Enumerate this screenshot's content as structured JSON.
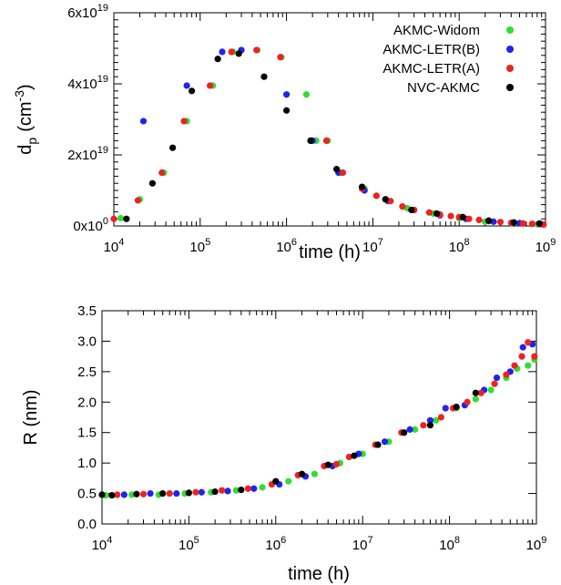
{
  "chart_data": [
    {
      "type": "scatter",
      "xscale": "log",
      "xlim": [
        10000,
        1000000000
      ],
      "ylim": [
        0,
        6e+19
      ],
      "xlabel": "time (h)",
      "ylabel_main": "d",
      "ylabel_sub": "p",
      "ylabel_unit": "(cm",
      "ylabel_unit_sup": "-3",
      "ylabel_close": ")",
      "xticks": [
        {
          "value": 10000,
          "base": "10",
          "exp": "4"
        },
        {
          "value": 100000,
          "base": "10",
          "exp": "5"
        },
        {
          "value": 1000000,
          "base": "10",
          "exp": "6"
        },
        {
          "value": 10000000,
          "base": "10",
          "exp": "7"
        },
        {
          "value": 100000000,
          "base": "10",
          "exp": "8"
        },
        {
          "value": 1000000000,
          "base": "10",
          "exp": "9"
        }
      ],
      "yticks": [
        {
          "value": 0,
          "mant": "0x10",
          "exp": "0"
        },
        {
          "value": 2e+19,
          "mant": "2x10",
          "exp": "19"
        },
        {
          "value": 4e+19,
          "mant": "4x10",
          "exp": "19"
        },
        {
          "value": 6e+19,
          "mant": "6x10",
          "exp": "19"
        }
      ],
      "legend_position": "top-right",
      "series": [
        {
          "name": "AKMC-Widom",
          "color": "#33dd33",
          "x": [
            12000,
            20000,
            38000,
            70000,
            140000,
            240000,
            460000,
            870000,
            1700000,
            2200000,
            3000000,
            4300000,
            8000000,
            14000000,
            25000000,
            50000000,
            100000000,
            200000000,
            400000000,
            800000000
          ],
          "y": [
            2.2e+18,
            7.5e+18,
            1.5e+19,
            2.95e+19,
            3.95e+19,
            4.9e+19,
            4.95e+19,
            4.75e+19,
            3.7e+19,
            2.4e+19,
            2.4e+19,
            1.5e+19,
            1.05e+19,
            7.5e+18,
            5e+18,
            3.5e+18,
            2.2e+18,
            1.2e+18,
            8e+17,
            5e+17
          ]
        },
        {
          "name": "AKMC-LETR(B)",
          "color": "#2222ee",
          "x": [
            22000,
            70000,
            180000,
            300000,
            1000000,
            2000000,
            4000000,
            8000000,
            15000000,
            30000000,
            60000000,
            120000000,
            250000000,
            500000000,
            900000000
          ],
          "y": [
            2.95e+19,
            3.95e+19,
            4.9e+19,
            4.95e+19,
            3.7e+19,
            2.4e+19,
            1.5e+19,
            1e+19,
            7e+18,
            4.5e+18,
            3e+18,
            2e+18,
            1.2e+18,
            8e+17,
            5e+17
          ]
        },
        {
          "name": "AKMC-LETR(A)",
          "color": "#ee2222",
          "x": [
            10000,
            19000,
            36000,
            65000,
            130000,
            230000,
            450000,
            850000,
            1900000,
            2900000,
            4500000,
            7500000,
            11000000,
            16000000,
            22000000,
            30000000,
            45000000,
            60000000,
            80000000,
            100000000,
            130000000,
            170000000,
            220000000,
            300000000,
            400000000,
            550000000,
            700000000,
            850000000,
            950000000
          ],
          "y": [
            2e+18,
            7.2e+18,
            1.5e+19,
            2.95e+19,
            3.95e+19,
            4.9e+19,
            4.95e+19,
            4.75e+19,
            2.4e+19,
            2.4e+19,
            1.5e+19,
            1.05e+19,
            8.5e+18,
            7e+18,
            5.5e+18,
            4.5e+18,
            3.8e+18,
            3.2e+18,
            2.8e+18,
            2.5e+18,
            2e+18,
            1.7e+18,
            1.4e+18,
            1.1e+18,
            9e+17,
            7e+17,
            6e+17,
            5e+17,
            4e+17
          ]
        },
        {
          "name": "NVC-AKMC",
          "color": "#000000",
          "x": [
            14000,
            28000,
            48000,
            80000,
            160000,
            280000,
            550000,
            1000000,
            1900000,
            3800000,
            7500000,
            14000000,
            28000000,
            55000000,
            110000000,
            220000000,
            430000000,
            850000000
          ],
          "y": [
            2e+18,
            1.2e+19,
            2.2e+19,
            3.8e+19,
            4.7e+19,
            4.85e+19,
            4.2e+19,
            3.25e+19,
            2.4e+19,
            1.6e+19,
            1.1e+19,
            7.5e+18,
            4.5e+18,
            3.5e+18,
            2.5e+18,
            1.5e+18,
            1e+18,
            7e+17
          ]
        }
      ]
    },
    {
      "type": "scatter",
      "xscale": "log",
      "xlim": [
        10000,
        1000000000
      ],
      "ylim": [
        0,
        3.5
      ],
      "xlabel": "time (h)",
      "ylabel": "R (nm)",
      "xticks": [
        {
          "value": 10000,
          "base": "10",
          "exp": "4"
        },
        {
          "value": 100000,
          "base": "10",
          "exp": "5"
        },
        {
          "value": 1000000,
          "base": "10",
          "exp": "6"
        },
        {
          "value": 10000000,
          "base": "10",
          "exp": "7"
        },
        {
          "value": 100000000,
          "base": "10",
          "exp": "8"
        },
        {
          "value": 1000000000,
          "base": "10",
          "exp": "9"
        }
      ],
      "yticks": [
        {
          "value": 0,
          "label": "0.0"
        },
        {
          "value": 0.5,
          "label": "0.5"
        },
        {
          "value": 1.0,
          "label": "1.0"
        },
        {
          "value": 1.5,
          "label": "1.5"
        },
        {
          "value": 2.0,
          "label": "2.0"
        },
        {
          "value": 2.5,
          "label": "2.5"
        },
        {
          "value": 3.0,
          "label": "3.0"
        },
        {
          "value": 3.5,
          "label": "3.5"
        }
      ],
      "series": [
        {
          "name": "AKMC-Widom",
          "color": "#33dd33",
          "x": [
            11000,
            22000,
            45000,
            90000,
            180000,
            350000,
            700000,
            1400000,
            2800000,
            5500000,
            10000000,
            20000000,
            40000000,
            70000000,
            120000000,
            200000000,
            300000000,
            450000000,
            600000000,
            800000000,
            950000000
          ],
          "y": [
            0.47,
            0.48,
            0.48,
            0.5,
            0.52,
            0.55,
            0.6,
            0.7,
            0.82,
            1.0,
            1.15,
            1.35,
            1.55,
            1.7,
            1.9,
            2.05,
            2.2,
            2.4,
            2.55,
            2.6,
            2.7
          ]
        },
        {
          "name": "AKMC-LETR(B)",
          "color": "#2222ee",
          "x": [
            18000,
            36000,
            72000,
            140000,
            280000,
            560000,
            1100000,
            2200000,
            4500000,
            9000000,
            18000000,
            35000000,
            60000000,
            90000000,
            150000000,
            250000000,
            350000000,
            500000000,
            700000000,
            900000000
          ],
          "y": [
            0.48,
            0.5,
            0.5,
            0.52,
            0.54,
            0.58,
            0.65,
            0.78,
            0.95,
            1.15,
            1.35,
            1.55,
            1.7,
            1.9,
            1.95,
            2.2,
            2.4,
            2.5,
            2.9,
            2.95
          ]
        },
        {
          "name": "AKMC-LETR(A)",
          "color": "#ee2222",
          "x": [
            15000,
            30000,
            60000,
            120000,
            240000,
            480000,
            900000,
            1800000,
            3600000,
            5000000,
            7000000,
            14000000,
            28000000,
            50000000,
            80000000,
            110000000,
            160000000,
            230000000,
            330000000,
            450000000,
            560000000,
            680000000,
            800000000,
            950000000
          ],
          "y": [
            0.48,
            0.49,
            0.5,
            0.52,
            0.55,
            0.58,
            0.65,
            0.8,
            0.95,
            0.98,
            1.1,
            1.3,
            1.5,
            1.62,
            1.75,
            1.9,
            2.0,
            2.15,
            2.3,
            2.45,
            2.6,
            2.75,
            2.98,
            2.75
          ]
        },
        {
          "name": "NVC-AKMC",
          "color": "#000000",
          "x": [
            10000,
            13000,
            25000,
            50000,
            100000,
            200000,
            400000,
            1000000,
            2000000,
            4000000,
            8000000,
            15000000,
            30000000,
            60000000,
            120000000,
            200000000
          ],
          "y": [
            0.48,
            0.47,
            0.49,
            0.5,
            0.51,
            0.53,
            0.56,
            0.7,
            0.82,
            0.97,
            1.12,
            1.3,
            1.5,
            1.62,
            1.92,
            2.15
          ]
        }
      ]
    }
  ]
}
